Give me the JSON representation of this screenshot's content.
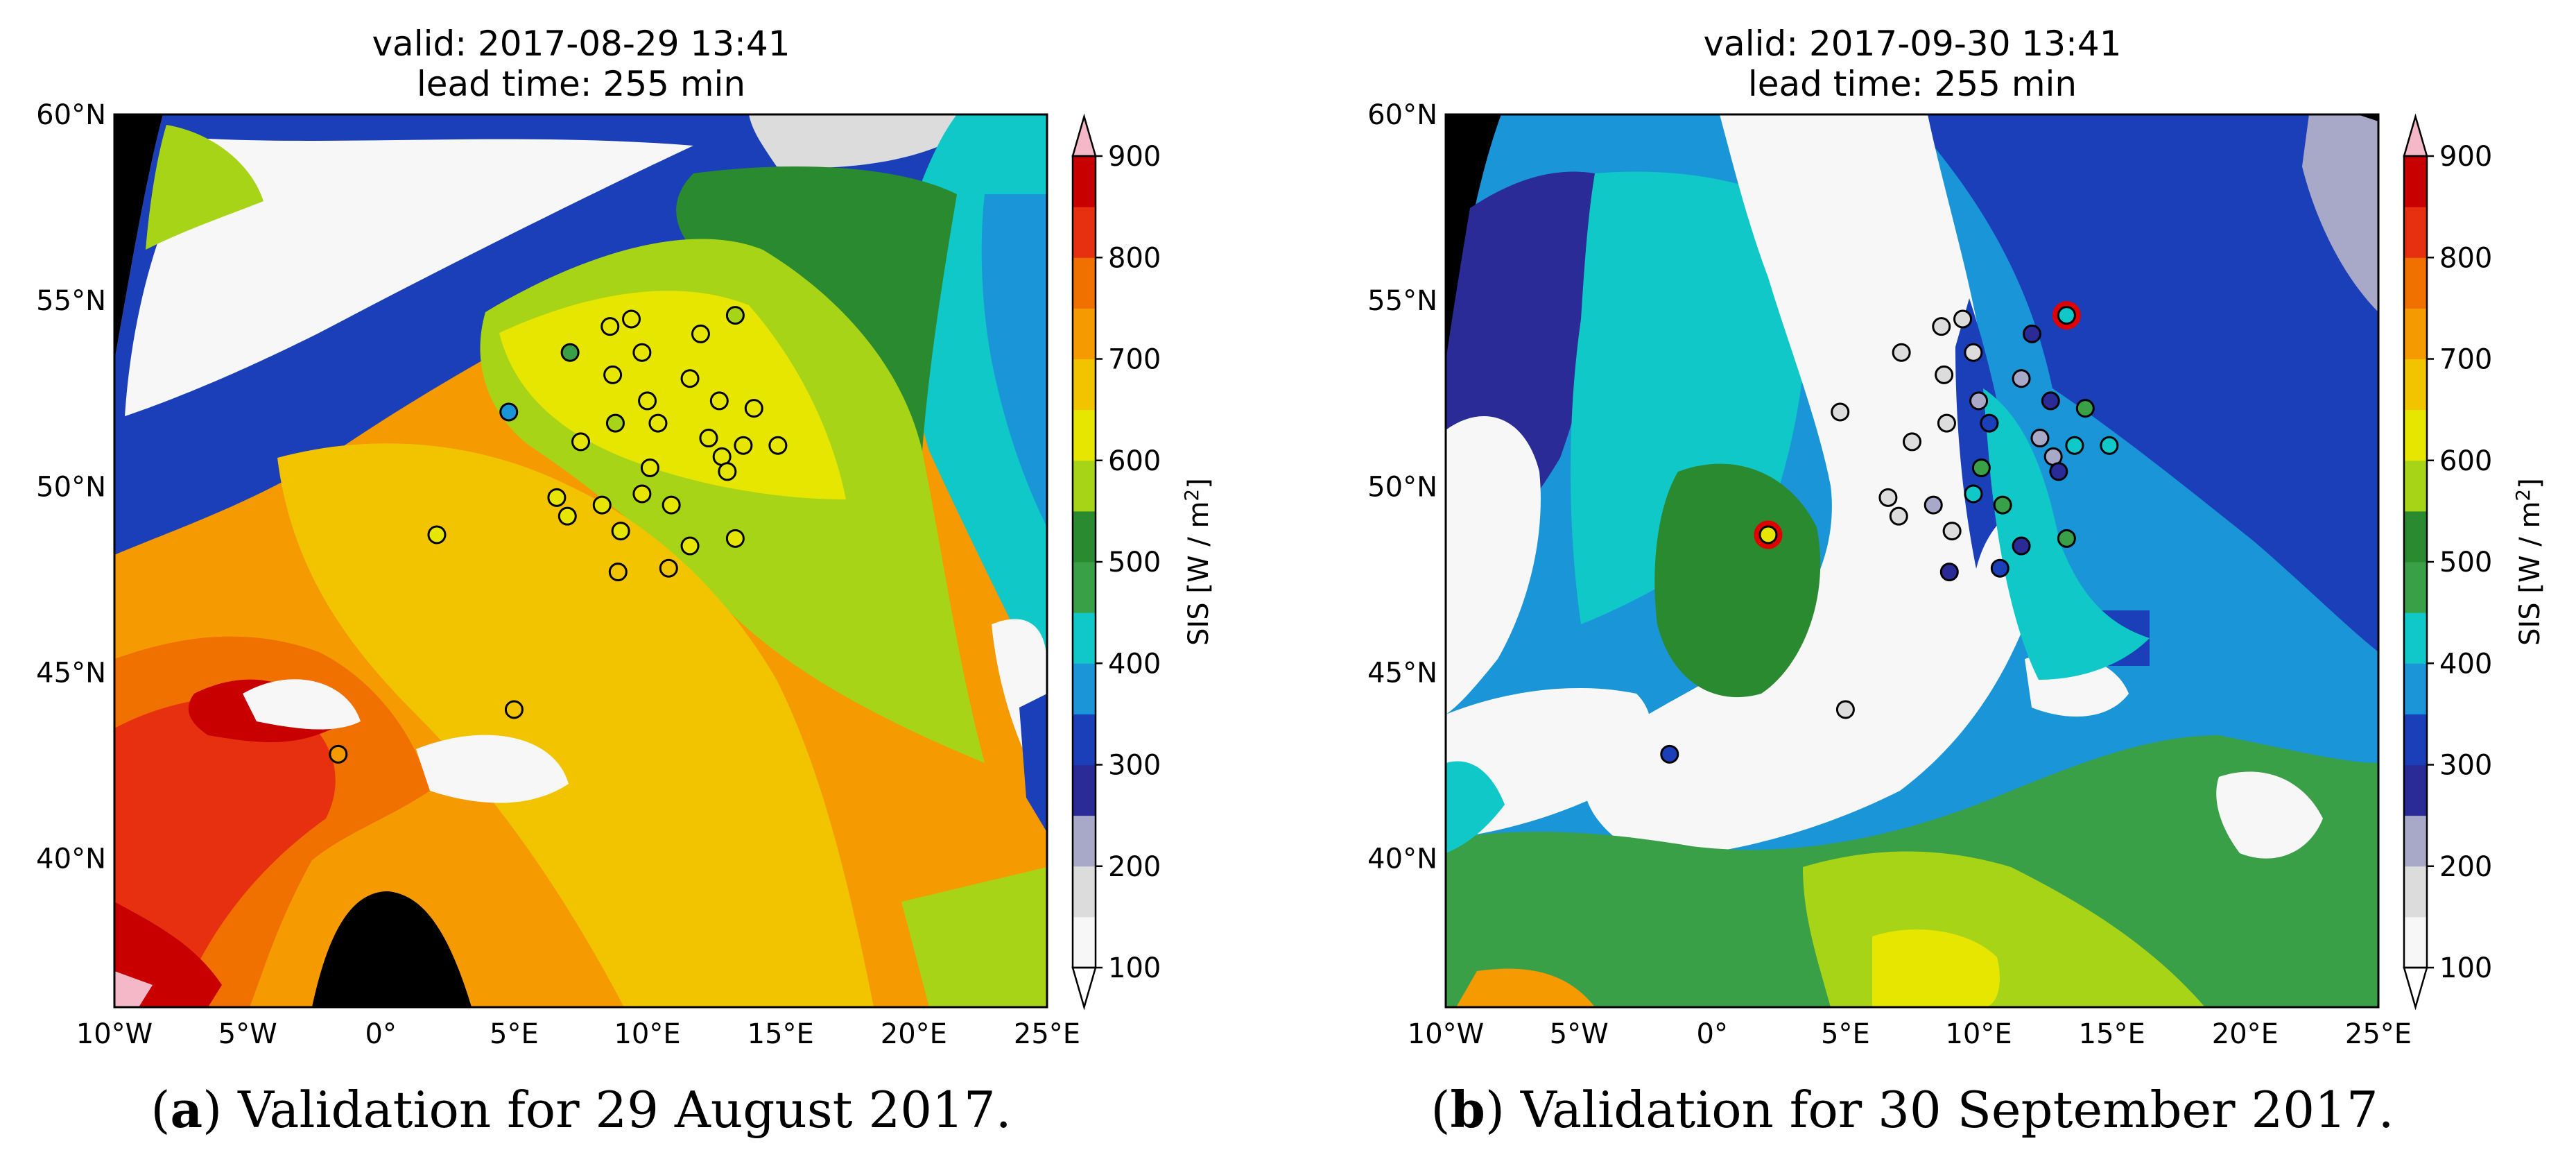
{
  "figure": {
    "panel_a_caption": {
      "label": "a",
      "text": "Validation for 29 August 2017."
    },
    "panel_b_caption": {
      "label": "b",
      "text": "Validation for 30 September 2017."
    }
  },
  "colorbar": {
    "label": "SIS [W / m",
    "label_sup": "2",
    "label_end": "]",
    "ticks": [
      "100",
      "200",
      "300",
      "400",
      "500",
      "600",
      "700",
      "800",
      "900"
    ],
    "levels": [
      100,
      150,
      200,
      250,
      300,
      350,
      400,
      450,
      500,
      550,
      600,
      650,
      700,
      750,
      800,
      850,
      900
    ],
    "colors": [
      "#f7f7f7",
      "#dcdcdc",
      "#a8a8c8",
      "#2b2b98",
      "#1a3fb8",
      "#1a96d8",
      "#10c8c8",
      "#3aa048",
      "#2a8a30",
      "#a8d418",
      "#e6e600",
      "#f2c400",
      "#f59a00",
      "#f07000",
      "#e63010",
      "#c80000"
    ],
    "over_color": "#f4b8c8",
    "under_color": "#ffffff"
  },
  "chart_data": [
    {
      "type": "heatmap",
      "title": "valid: 2017-08-29 13:41",
      "subtitle": "lead time: 255 min",
      "variable": "SIS",
      "units": "W / m2",
      "xlim": [
        -10,
        25
      ],
      "ylim": [
        36,
        60
      ],
      "xticks": [
        "10°W",
        "5°W",
        "0°",
        "5°E",
        "10°E",
        "15°E",
        "20°E",
        "25°E"
      ],
      "yticks": [
        "40°N",
        "45°N",
        "50°N",
        "55°N",
        "60°N"
      ],
      "stations": [
        {
          "lon": 8.6,
          "lat": 54.3,
          "sis": 610
        },
        {
          "lon": 9.4,
          "lat": 54.5,
          "sis": 605
        },
        {
          "lon": 7.1,
          "lat": 53.6,
          "sis": 470
        },
        {
          "lon": 8.7,
          "lat": 53.0,
          "sis": 610
        },
        {
          "lon": 9.8,
          "lat": 53.6,
          "sis": 615
        },
        {
          "lon": 12.0,
          "lat": 54.1,
          "sis": 605
        },
        {
          "lon": 13.3,
          "lat": 54.6,
          "sis": 550
        },
        {
          "lon": 10.0,
          "lat": 52.3,
          "sis": 605
        },
        {
          "lon": 11.6,
          "lat": 52.9,
          "sis": 605
        },
        {
          "lon": 4.8,
          "lat": 52.0,
          "sis": 380
        },
        {
          "lon": 7.5,
          "lat": 51.2,
          "sis": 605
        },
        {
          "lon": 8.8,
          "lat": 51.7,
          "sis": 555
        },
        {
          "lon": 10.4,
          "lat": 51.7,
          "sis": 605
        },
        {
          "lon": 12.7,
          "lat": 52.3,
          "sis": 605
        },
        {
          "lon": 14.0,
          "lat": 52.1,
          "sis": 605
        },
        {
          "lon": 12.3,
          "lat": 51.3,
          "sis": 610
        },
        {
          "lon": 12.8,
          "lat": 50.8,
          "sis": 610
        },
        {
          "lon": 13.6,
          "lat": 51.1,
          "sis": 610
        },
        {
          "lon": 14.9,
          "lat": 51.1,
          "sis": 610
        },
        {
          "lon": 13.0,
          "lat": 50.4,
          "sis": 615
        },
        {
          "lon": 10.1,
          "lat": 50.5,
          "sis": 600
        },
        {
          "lon": 6.6,
          "lat": 49.7,
          "sis": 640
        },
        {
          "lon": 7.0,
          "lat": 49.2,
          "sis": 645
        },
        {
          "lon": 8.3,
          "lat": 49.5,
          "sis": 635
        },
        {
          "lon": 9.8,
          "lat": 49.8,
          "sis": 630
        },
        {
          "lon": 10.9,
          "lat": 49.5,
          "sis": 625
        },
        {
          "lon": 9.0,
          "lat": 48.8,
          "sis": 640
        },
        {
          "lon": 11.6,
          "lat": 48.4,
          "sis": 640
        },
        {
          "lon": 13.3,
          "lat": 48.6,
          "sis": 635
        },
        {
          "lon": 8.9,
          "lat": 47.7,
          "sis": 650
        },
        {
          "lon": 10.8,
          "lat": 47.8,
          "sis": 650
        },
        {
          "lon": 2.1,
          "lat": 48.7,
          "sis": 645
        },
        {
          "lon": 5.0,
          "lat": 44.0,
          "sis": 690
        },
        {
          "lon": -1.6,
          "lat": 42.8,
          "sis": 700
        }
      ]
    },
    {
      "type": "heatmap",
      "title": "valid: 2017-09-30 13:41",
      "subtitle": "lead time: 255 min",
      "variable": "SIS",
      "units": "W / m2",
      "xlim": [
        -10,
        25
      ],
      "ylim": [
        36,
        60
      ],
      "xticks": [
        "10°W",
        "5°W",
        "0°",
        "5°E",
        "10°E",
        "15°E",
        "20°E",
        "25°E"
      ],
      "yticks": [
        "40°N",
        "45°N",
        "50°N",
        "55°N",
        "60°N"
      ],
      "stations": [
        {
          "lon": 8.6,
          "lat": 54.3,
          "sis": 160
        },
        {
          "lon": 9.4,
          "lat": 54.5,
          "sis": 160
        },
        {
          "lon": 7.1,
          "lat": 53.6,
          "sis": 160
        },
        {
          "lon": 8.7,
          "lat": 53.0,
          "sis": 160
        },
        {
          "lon": 9.8,
          "lat": 53.6,
          "sis": 160
        },
        {
          "lon": 12.0,
          "lat": 54.1,
          "sis": 290
        },
        {
          "lon": 13.3,
          "lat": 54.6,
          "sis": 430,
          "highlight": true
        },
        {
          "lon": 10.0,
          "lat": 52.3,
          "sis": 210
        },
        {
          "lon": 11.6,
          "lat": 52.9,
          "sis": 220
        },
        {
          "lon": 4.8,
          "lat": 52.0,
          "sis": 160
        },
        {
          "lon": 7.5,
          "lat": 51.2,
          "sis": 160
        },
        {
          "lon": 8.8,
          "lat": 51.7,
          "sis": 160
        },
        {
          "lon": 10.4,
          "lat": 51.7,
          "sis": 320
        },
        {
          "lon": 12.7,
          "lat": 52.3,
          "sis": 260
        },
        {
          "lon": 14.0,
          "lat": 52.1,
          "sis": 460
        },
        {
          "lon": 12.3,
          "lat": 51.3,
          "sis": 230
        },
        {
          "lon": 12.8,
          "lat": 50.8,
          "sis": 240
        },
        {
          "lon": 13.6,
          "lat": 51.1,
          "sis": 420
        },
        {
          "lon": 14.9,
          "lat": 51.1,
          "sis": 430
        },
        {
          "lon": 13.0,
          "lat": 50.4,
          "sis": 270
        },
        {
          "lon": 10.1,
          "lat": 50.5,
          "sis": 470
        },
        {
          "lon": 6.6,
          "lat": 49.7,
          "sis": 160
        },
        {
          "lon": 7.0,
          "lat": 49.2,
          "sis": 160
        },
        {
          "lon": 8.3,
          "lat": 49.5,
          "sis": 200
        },
        {
          "lon": 9.8,
          "lat": 49.8,
          "sis": 440
        },
        {
          "lon": 10.9,
          "lat": 49.5,
          "sis": 470
        },
        {
          "lon": 9.0,
          "lat": 48.8,
          "sis": 180
        },
        {
          "lon": 11.6,
          "lat": 48.4,
          "sis": 250
        },
        {
          "lon": 13.3,
          "lat": 48.6,
          "sis": 480
        },
        {
          "lon": 8.9,
          "lat": 47.7,
          "sis": 290
        },
        {
          "lon": 10.8,
          "lat": 47.8,
          "sis": 330
        },
        {
          "lon": 2.1,
          "lat": 48.7,
          "sis": 610,
          "highlight": true
        },
        {
          "lon": 5.0,
          "lat": 44.0,
          "sis": 160
        },
        {
          "lon": -1.6,
          "lat": 42.8,
          "sis": 330
        }
      ]
    }
  ]
}
